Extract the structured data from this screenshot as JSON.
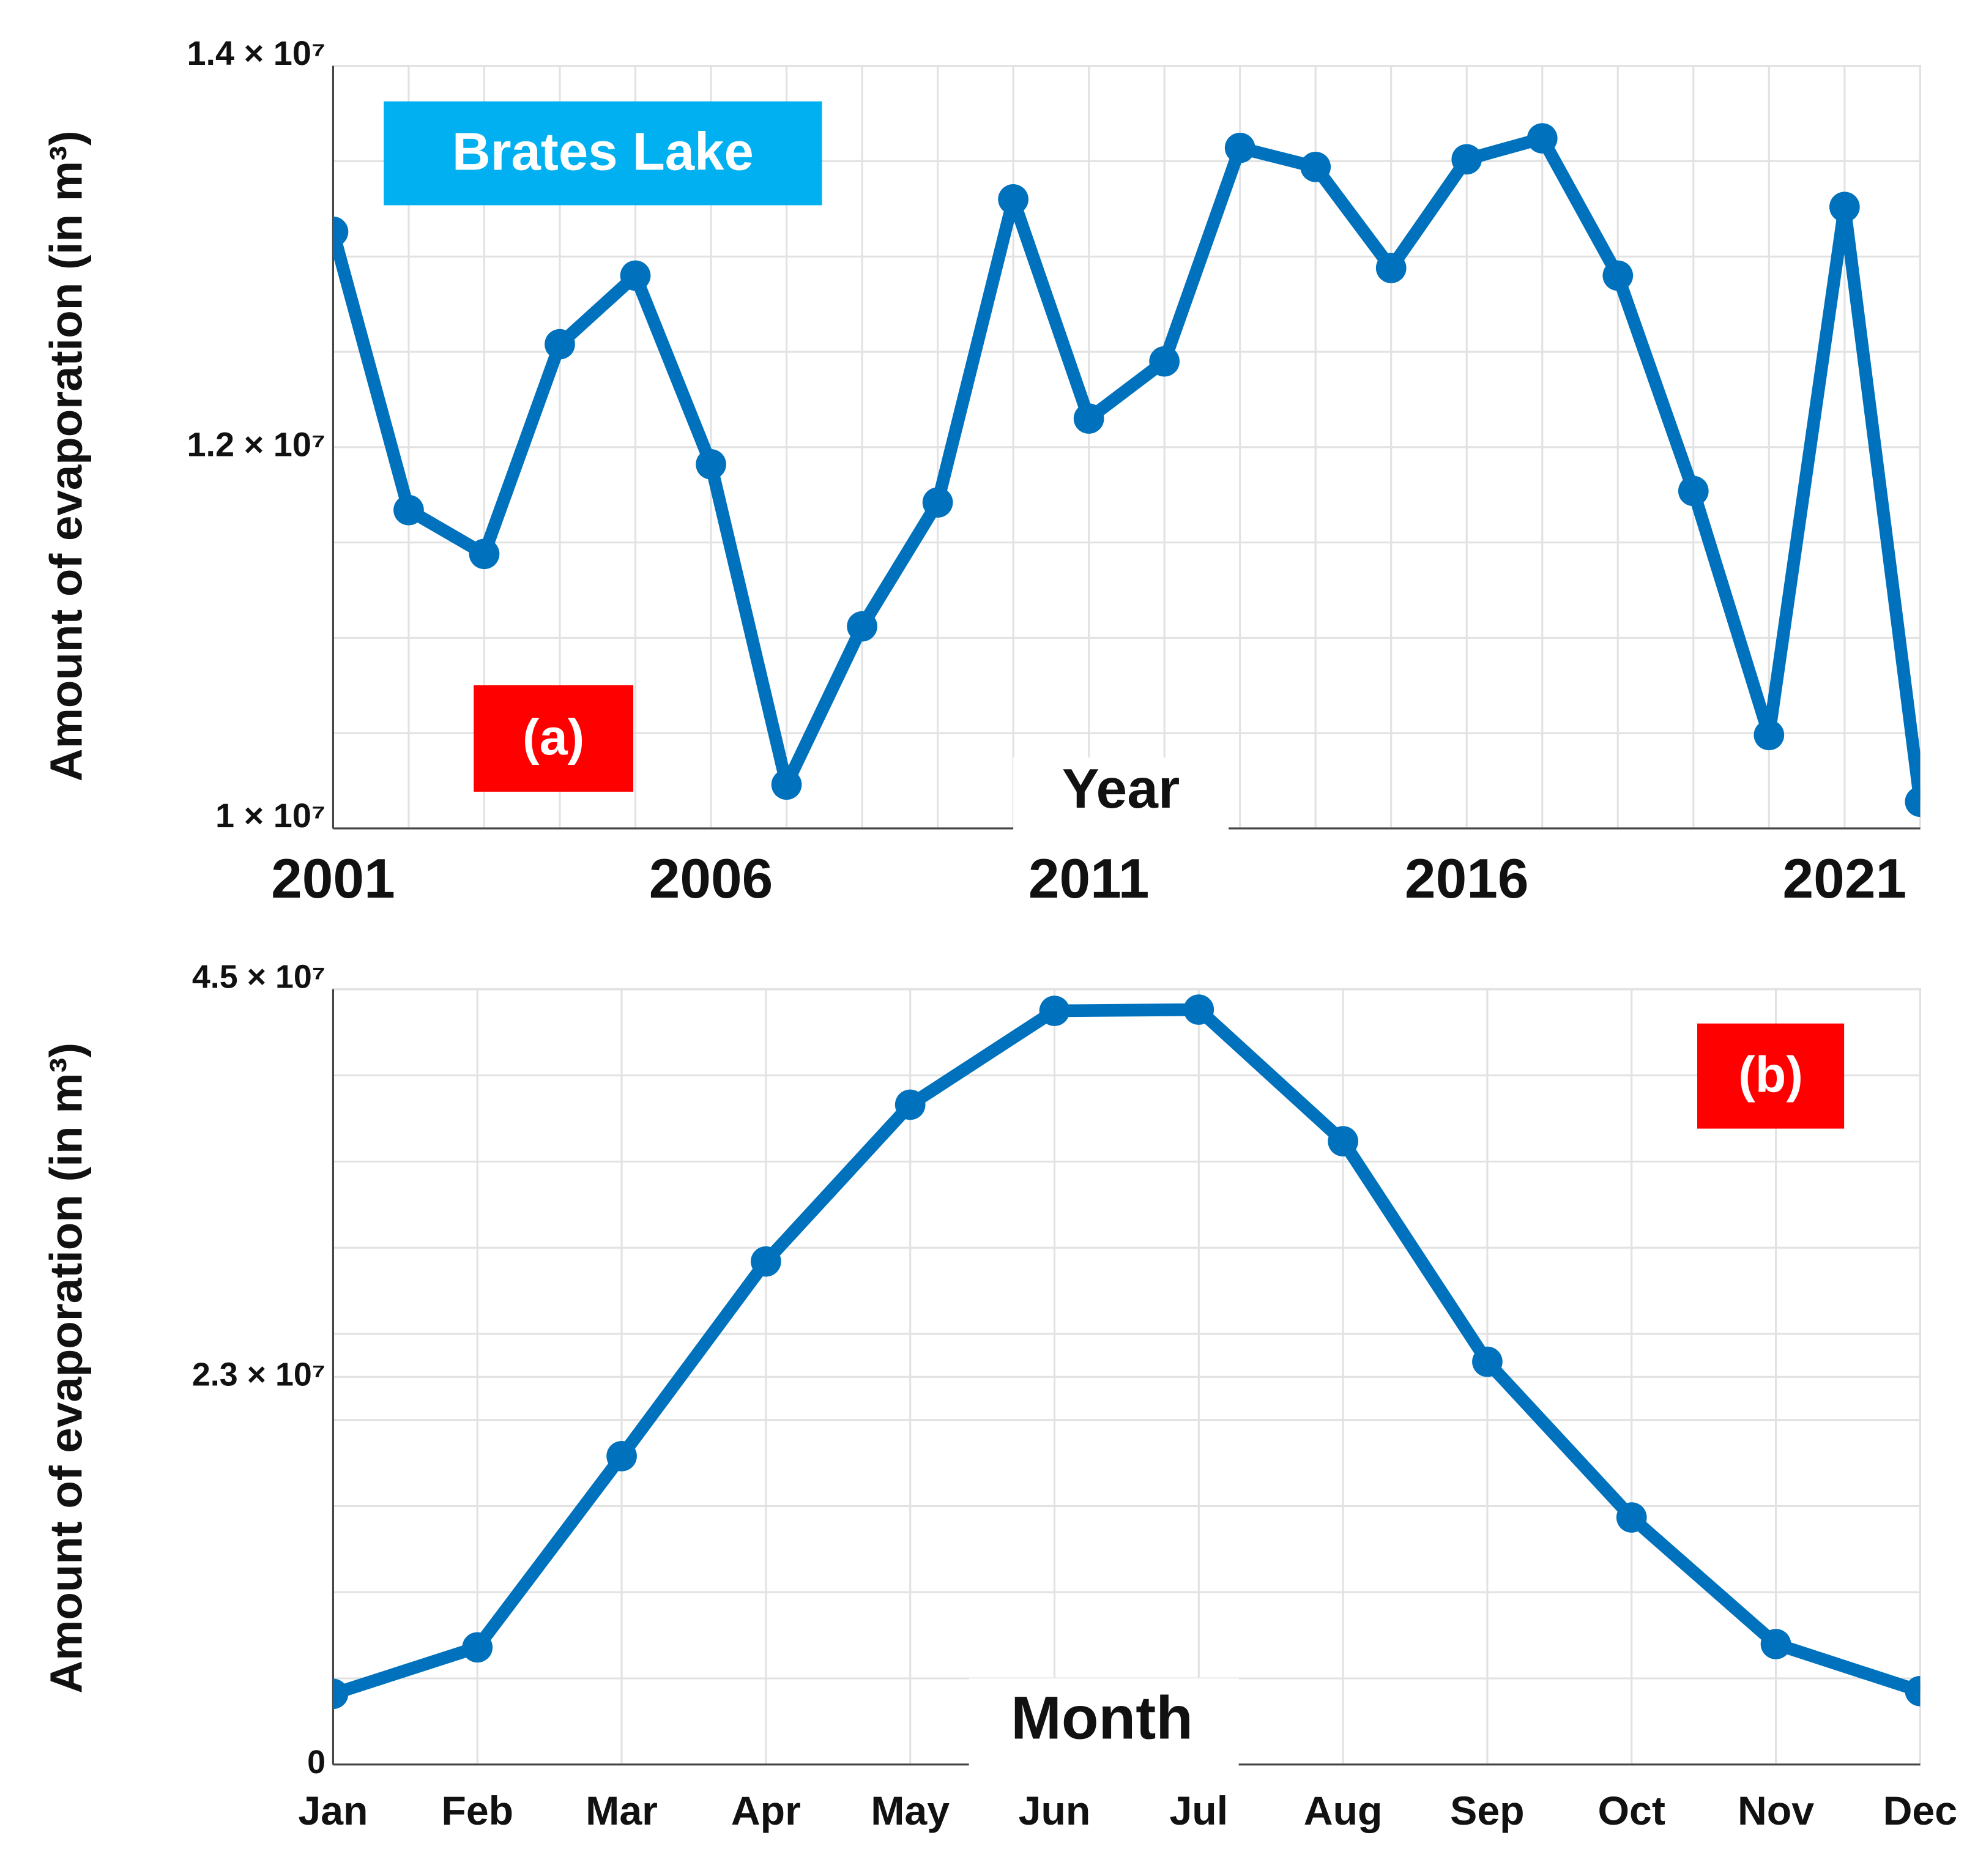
{
  "chart_data": [
    {
      "type": "line",
      "x_label": "Year",
      "y_label": "Amount of evaporation (in m³)",
      "label_box": "Brates Lake",
      "label_box_color": "#00b0f0",
      "panel_label": "(a)",
      "panel_label_color": "#ff0000",
      "x": [
        2001,
        2002,
        2003,
        2004,
        2005,
        2006,
        2007,
        2008,
        2009,
        2010,
        2011,
        2012,
        2013,
        2014,
        2015,
        2016,
        2017,
        2018,
        2019,
        2020,
        2021,
        2022
      ],
      "series": [
        {
          "color": "#0072bd",
          "values": [
            13130000,
            11670000,
            11440000,
            12540000,
            12900000,
            11910000,
            10230000,
            11060000,
            11710000,
            13300000,
            12150000,
            12450000,
            13570000,
            13470000,
            12940000,
            13510000,
            13620000,
            12900000,
            11770000,
            10490000,
            13260000,
            10140000
          ]
        }
      ],
      "xlim": [
        2001,
        2022
      ],
      "xticks": [
        2001,
        2006,
        2011,
        2016,
        2021
      ],
      "ylim": [
        10000000,
        14000000
      ],
      "yticks": [
        {
          "value": 10000000,
          "label": "1 × 10⁷"
        },
        {
          "value": 12000000,
          "label": "1.2 × 10⁷"
        },
        {
          "value": 14000000,
          "label": "1.4 × 10⁷"
        }
      ],
      "yminor": [
        10500000,
        11000000,
        11500000,
        12500000,
        13000000,
        13500000
      ],
      "grid": true
    },
    {
      "type": "line",
      "x_label": "Month",
      "y_label": "Amount of evaporation (in m³)",
      "panel_label": "(b)",
      "panel_label_color": "#ff0000",
      "categories": [
        "Jan",
        "Feb",
        "Mar",
        "Apr",
        "May",
        "Jun",
        "Jul",
        "Aug",
        "Sep",
        "Oct",
        "Nov",
        "Dec"
      ],
      "series": [
        {
          "color": "#0072bd",
          "values": [
            4100000,
            6800000,
            17900000,
            29200000,
            38300000,
            43750000,
            43820000,
            36180000,
            23380000,
            14340000,
            6990000,
            4260000
          ]
        }
      ],
      "ylim": [
        0,
        45000000
      ],
      "yticks": [
        0,
        {
          "value": 22500000,
          "label": "2.3 × 10⁷"
        },
        {
          "value": 45000000,
          "label": "4.5 × 10⁷"
        }
      ],
      "yminor": [
        5000000,
        10000000,
        15000000,
        20000000,
        25000000,
        30000000,
        35000000,
        40000000
      ],
      "grid": true
    }
  ]
}
